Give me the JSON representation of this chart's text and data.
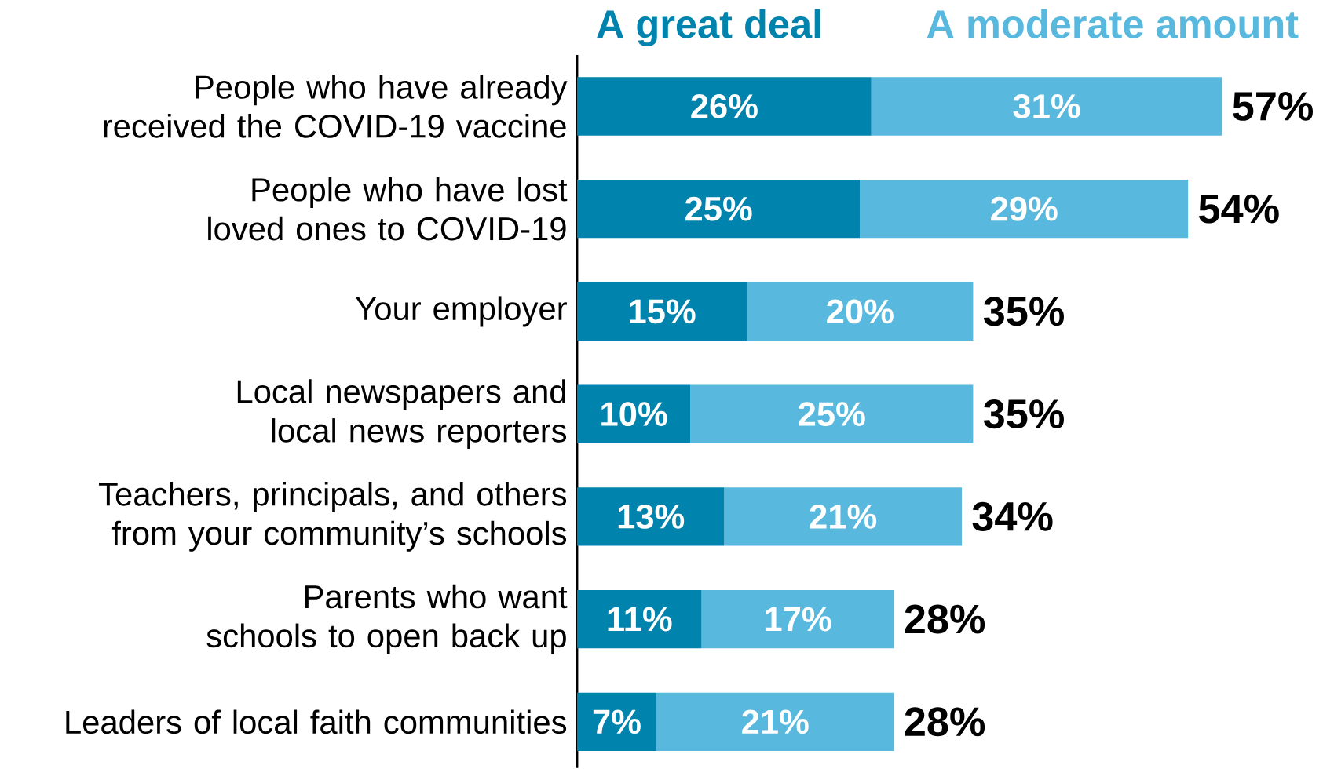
{
  "chart_data": {
    "type": "bar",
    "orientation": "horizontal",
    "stacked": true,
    "legend": "top",
    "categories": [
      "People who have already received the COVID-19 vaccine",
      "People who have lost loved ones to COVID-19",
      "Your employer",
      "Local newspapers and local news reporters",
      "Teachers, principals, and others from your community’s schools",
      "Parents who want schools to open back up",
      "Leaders of local faith communities"
    ],
    "series": [
      {
        "name": "A great deal",
        "color": "#0083ad",
        "values": [
          26,
          25,
          15,
          10,
          13,
          11,
          7
        ],
        "value_labels": [
          "26%",
          "25%",
          "15%",
          "10%",
          "13%",
          "11%",
          "7%"
        ]
      },
      {
        "name": "A moderate amount",
        "color": "#58b8dd",
        "values": [
          31,
          29,
          20,
          25,
          21,
          17,
          21
        ],
        "value_labels": [
          "31%",
          "29%",
          "20%",
          "25%",
          "21%",
          "17%",
          "21%"
        ]
      }
    ],
    "totals": [
      "57%",
      "54%",
      "35%",
      "35%",
      "34%",
      "28%",
      "28%"
    ]
  }
}
